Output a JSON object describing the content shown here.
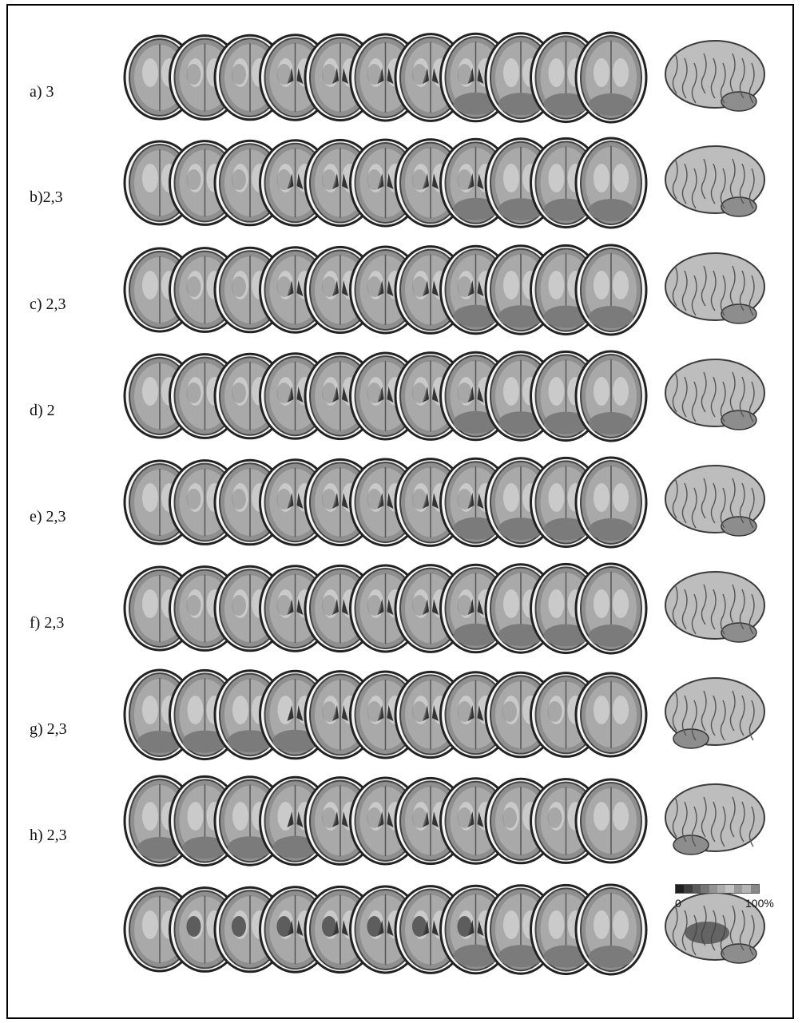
{
  "rows": [
    {
      "label": "a) 3",
      "orientation": "bottom-to-top",
      "brain_view": "left"
    },
    {
      "label": "b)2,3",
      "orientation": "bottom-to-top",
      "brain_view": "left"
    },
    {
      "label": "c) 2,3",
      "orientation": "bottom-to-top",
      "brain_view": "left"
    },
    {
      "label": "d) 2",
      "orientation": "bottom-to-top",
      "brain_view": "left"
    },
    {
      "label": "e) 2,3",
      "orientation": "bottom-to-top",
      "brain_view": "left"
    },
    {
      "label": "f) 2,3",
      "orientation": "bottom-to-top",
      "brain_view": "left"
    },
    {
      "label": "g) 2,3",
      "orientation": "top-to-bottom",
      "brain_view": "right"
    },
    {
      "label": "h) 2,3",
      "orientation": "top-to-bottom",
      "brain_view": "right"
    },
    {
      "label": "",
      "orientation": "bottom-to-top",
      "brain_view": "left",
      "overlap_map": true
    }
  ],
  "scale": {
    "min_label": "0",
    "max_label": "100%",
    "colors": [
      "#1e1e1e",
      "#3d3d3d",
      "#5a5a5a",
      "#777777",
      "#939393",
      "#acacac",
      "#c4c4c4",
      "#999999",
      "#b5b5b5",
      "#888888"
    ]
  },
  "slices_per_row": 11
}
